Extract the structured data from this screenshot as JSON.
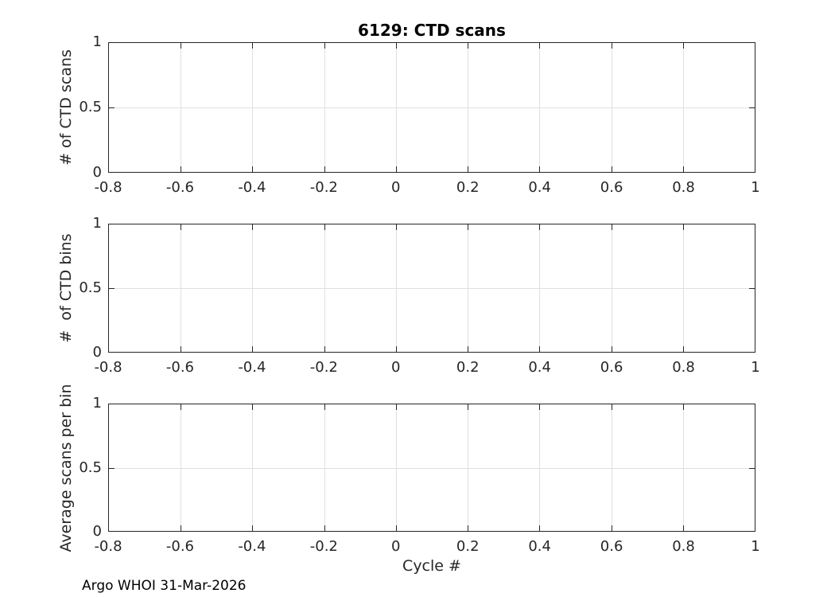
{
  "figure": {
    "footer": "Argo WHOI 31-Mar-2026"
  },
  "style": {
    "background": "#ffffff",
    "axis_color": "#262626",
    "grid_color": "#e0e0e0",
    "title_color": "#000000"
  },
  "chart_data": [
    {
      "type": "line",
      "title": "6129: CTD scans",
      "xlabel": "",
      "ylabel": "# of CTD scans",
      "xlim": [
        -0.8,
        1
      ],
      "ylim": [
        0,
        1
      ],
      "xticks": [
        -0.8,
        -0.6,
        -0.4,
        -0.2,
        0,
        0.2,
        0.4,
        0.6,
        0.8,
        1
      ],
      "xtick_labels": [
        "-0.8",
        "-0.6",
        "-0.4",
        "-0.2",
        "0",
        "0.2",
        "0.4",
        "0.6",
        "0.8",
        "1"
      ],
      "yticks": [
        0,
        0.5,
        1
      ],
      "ytick_labels": [
        "0",
        "0.5",
        "1"
      ],
      "grid": true,
      "legend": null,
      "series": []
    },
    {
      "type": "line",
      "title": "",
      "xlabel": "",
      "ylabel": "#  of CTD bins",
      "xlim": [
        -0.8,
        1
      ],
      "ylim": [
        0,
        1
      ],
      "xticks": [
        -0.8,
        -0.6,
        -0.4,
        -0.2,
        0,
        0.2,
        0.4,
        0.6,
        0.8,
        1
      ],
      "xtick_labels": [
        "-0.8",
        "-0.6",
        "-0.4",
        "-0.2",
        "0",
        "0.2",
        "0.4",
        "0.6",
        "0.8",
        "1"
      ],
      "yticks": [
        0,
        0.5,
        1
      ],
      "ytick_labels": [
        "0",
        "0.5",
        "1"
      ],
      "grid": true,
      "legend": null,
      "series": []
    },
    {
      "type": "line",
      "title": "",
      "xlabel": "Cycle #",
      "ylabel": "Average scans per bin",
      "xlim": [
        -0.8,
        1
      ],
      "ylim": [
        0,
        1
      ],
      "xticks": [
        -0.8,
        -0.6,
        -0.4,
        -0.2,
        0,
        0.2,
        0.4,
        0.6,
        0.8,
        1
      ],
      "xtick_labels": [
        "-0.8",
        "-0.6",
        "-0.4",
        "-0.2",
        "0",
        "0.2",
        "0.4",
        "0.6",
        "0.8",
        "1"
      ],
      "yticks": [
        0,
        0.5,
        1
      ],
      "ytick_labels": [
        "0",
        "0.5",
        "1"
      ],
      "grid": true,
      "legend": null,
      "series": []
    }
  ]
}
